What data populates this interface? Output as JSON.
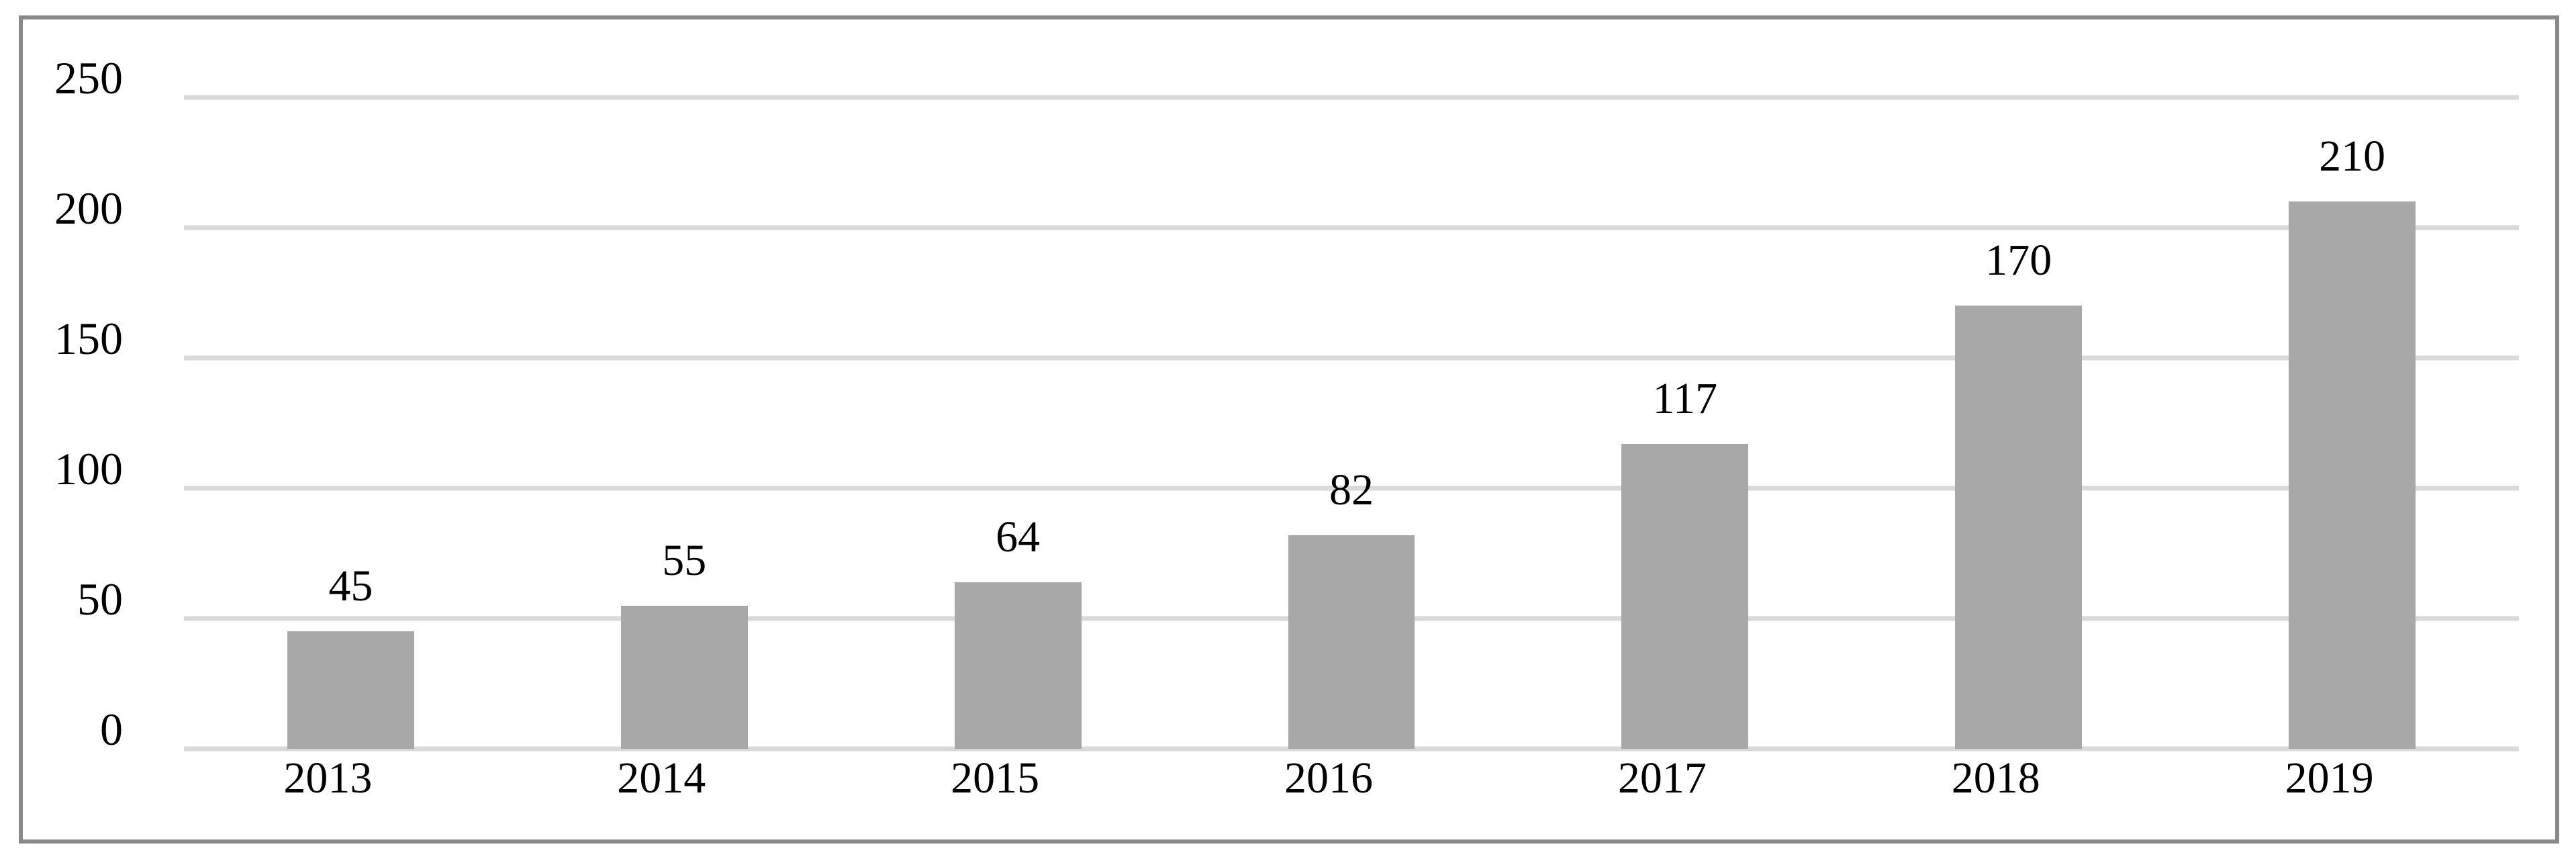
{
  "chart_data": {
    "type": "bar",
    "title": "",
    "xlabel": "",
    "ylabel": "",
    "categories": [
      "2013",
      "2014",
      "2015",
      "2016",
      "2017",
      "2018",
      "2019"
    ],
    "values": [
      45,
      55,
      64,
      82,
      117,
      170,
      210
    ],
    "data_labels": [
      "45",
      "55",
      "64",
      "82",
      "117",
      "170",
      "210"
    ],
    "y_ticks": [
      0,
      50,
      100,
      150,
      200,
      250
    ],
    "y_tick_labels": [
      "0",
      "50",
      "100",
      "150",
      "200",
      "250"
    ],
    "ylim": [
      0,
      250
    ],
    "grid": true,
    "legend_position": "none",
    "colors": {
      "bar": "#a8a8a8",
      "gridline": "#d9d9d9",
      "frame_border": "#898989",
      "text": "#000000",
      "background": "#ffffff"
    }
  }
}
